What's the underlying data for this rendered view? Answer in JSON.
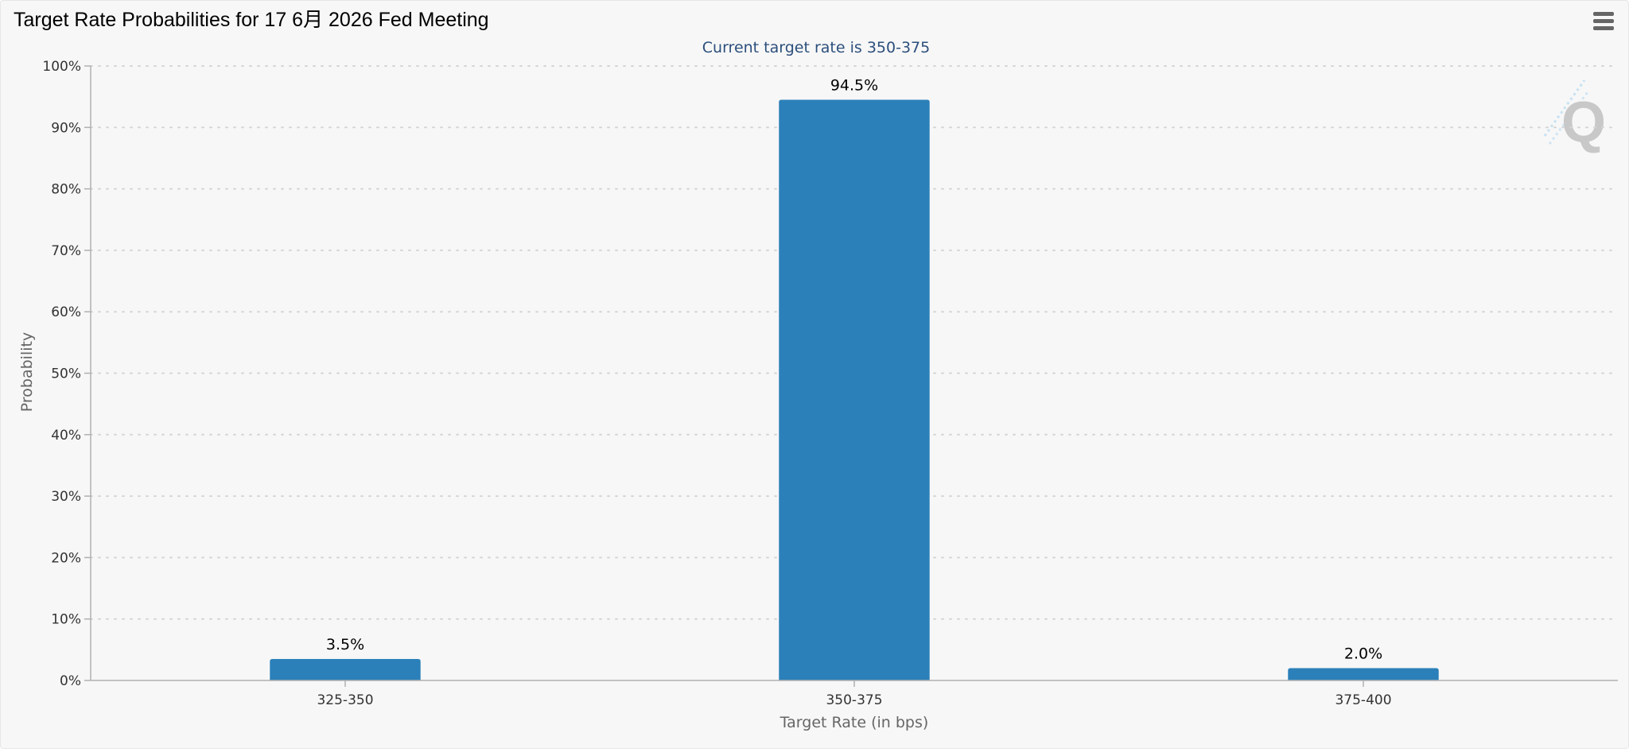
{
  "header": {
    "title": "Target Rate Probabilities for 17 6月 2026 Fed Meeting",
    "menu_icon": "hamburger-menu-icon"
  },
  "watermark": {
    "letter": "Q"
  },
  "chart_data": {
    "type": "bar",
    "title": "",
    "subtitle": "Current target rate is 350-375",
    "xlabel": "Target Rate (in bps)",
    "ylabel": "Probability",
    "categories": [
      "325-350",
      "350-375",
      "375-400"
    ],
    "values": [
      3.5,
      94.5,
      2.0
    ],
    "data_labels": [
      "3.5%",
      "94.5%",
      "2.0%"
    ],
    "ylim": [
      0,
      100
    ],
    "yticks": [
      0,
      10,
      20,
      30,
      40,
      50,
      60,
      70,
      80,
      90,
      100
    ],
    "ytick_labels": [
      "0%",
      "10%",
      "20%",
      "30%",
      "40%",
      "50%",
      "60%",
      "70%",
      "80%",
      "90%",
      "100%"
    ],
    "grid": true,
    "legend": "none",
    "colors": {
      "bar": "#2b80b9",
      "subtitle": "#2c4f7c",
      "axis_text": "#333333",
      "grid": "#d9d9d9"
    }
  }
}
